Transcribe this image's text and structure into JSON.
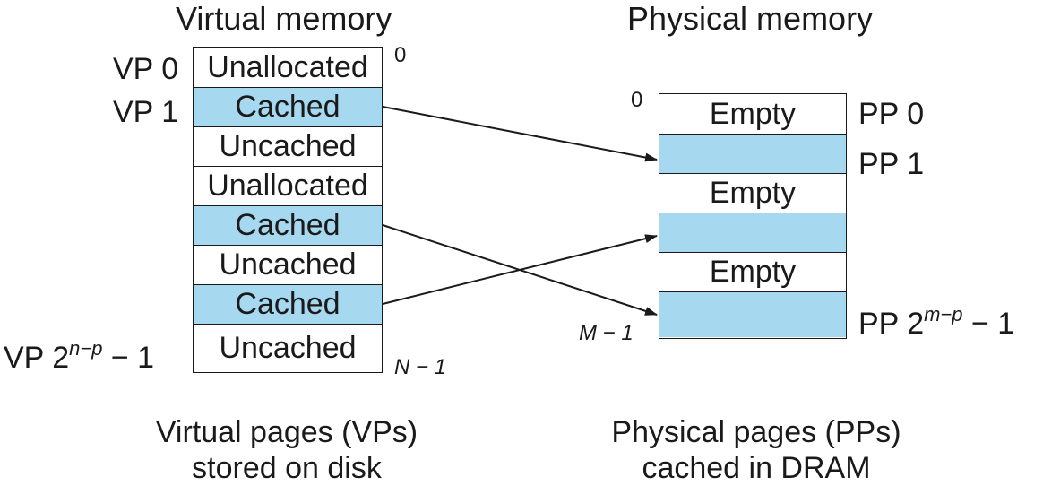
{
  "virtual": {
    "title": "Virtual memory",
    "cells": [
      {
        "text": "Unallocated",
        "state": "unallocated"
      },
      {
        "text": "Cached",
        "state": "cached"
      },
      {
        "text": "Uncached",
        "state": "uncached"
      },
      {
        "text": "Unallocated",
        "state": "unallocated"
      },
      {
        "text": "Cached",
        "state": "cached"
      },
      {
        "text": "Uncached",
        "state": "uncached"
      },
      {
        "text": "Cached",
        "state": "cached"
      },
      {
        "text": "Uncached",
        "state": "uncached"
      }
    ],
    "labels": {
      "vp0": "VP 0",
      "vp1": "VP 1",
      "vplast_prefix": "VP 2",
      "vplast_exp": "n−p",
      "vplast_suffix": " − 1"
    },
    "addr_top": "0",
    "addr_bottom": "N − 1",
    "caption_line1": "Virtual pages (VPs)",
    "caption_line2": "stored on disk"
  },
  "physical": {
    "title": "Physical memory",
    "cells": [
      {
        "text": "Empty",
        "state": "empty"
      },
      {
        "text": "",
        "state": "cached"
      },
      {
        "text": "Empty",
        "state": "empty"
      },
      {
        "text": "",
        "state": "cached"
      },
      {
        "text": "Empty",
        "state": "empty"
      },
      {
        "text": "",
        "state": "cached"
      }
    ],
    "labels": {
      "pp0": "PP 0",
      "pp1": "PP 1",
      "pplast_prefix": "PP 2",
      "pplast_exp": "m−p",
      "pplast_suffix": " − 1"
    },
    "addr_top": "0",
    "addr_bottom": "M − 1",
    "caption_line1": "Physical pages (PPs)",
    "caption_line2": "cached in DRAM"
  },
  "colors": {
    "cached": "#a6d8f0",
    "plain": "#ffffff",
    "ink": "#1a1a1a"
  }
}
